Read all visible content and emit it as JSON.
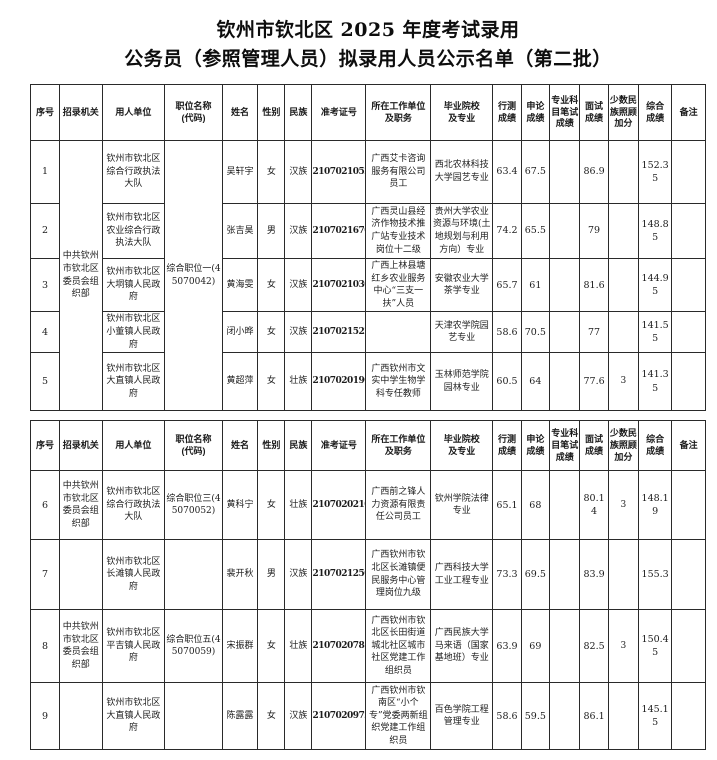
{
  "title": {
    "line1": "钦州市钦北区 2025 年度考试录用",
    "line2": "公务员（参照管理人员）拟录用人员公示名单（第二批）"
  },
  "colors": {
    "background": "#ffffff",
    "text": "#141414",
    "border": "#2a2a2a"
  },
  "columns": [
    "序号",
    "招录机关",
    "用人单位",
    "职位名称\n(代码)",
    "姓名",
    "性别",
    "民族",
    "准考证号",
    "所在工作单位\n及职务",
    "毕业院校\n及专业",
    "行测\n成绩",
    "申论\n成绩",
    "专业科\n目笔试\n成绩",
    "面试\n成绩",
    "少数民\n族照顾\n加分",
    "综合\n成绩",
    "备注"
  ],
  "tables": [
    {
      "merged": {
        "agency": "中共钦州市钦北区委员会组织部",
        "position": "综合职位一(45070042)"
      },
      "rows": [
        {
          "seq": "1",
          "employer": "钦州市钦北区综合行政执法大队",
          "name": "吴轩宇",
          "gender": "女",
          "ethnicity": "汉族",
          "ticket": "21070210520",
          "work_unit": "广西艾卡咨询服务有限公司员工",
          "school_major": "西北农林科技大学园艺专业",
          "xingce": "63.4",
          "shenlun": "67.5",
          "subject": "",
          "interview": "86.9",
          "bonus": "",
          "total": "152.35",
          "remark": ""
        },
        {
          "seq": "2",
          "employer": "钦州市钦北区农业综合行政执法大队",
          "name": "张吉昊",
          "gender": "男",
          "ethnicity": "汉族",
          "ticket": "21070216702",
          "work_unit": "广西灵山县经济作物技术推广站专业技术岗位十二级",
          "school_major": "贵州大学农业资源与环境(土地规划与利用方向）专业",
          "xingce": "74.2",
          "shenlun": "65.5",
          "subject": "",
          "interview": "79",
          "bonus": "",
          "total": "148.85",
          "remark": ""
        },
        {
          "seq": "3",
          "employer": "钦州市钦北区大垌镇人民政府",
          "name": "黄海雯",
          "gender": "女",
          "ethnicity": "汉族",
          "ticket": "21070210304",
          "work_unit": "广西上林县塘红乡农业服务中心“三支一扶”人员",
          "school_major": "安徽农业大学茶学专业",
          "xingce": "65.7",
          "shenlun": "61",
          "subject": "",
          "interview": "81.6",
          "bonus": "",
          "total": "144.95",
          "remark": ""
        },
        {
          "seq": "4",
          "employer": "钦州市钦北区小董镇人民政府",
          "name": "闭小晔",
          "gender": "女",
          "ethnicity": "汉族",
          "ticket": "21070215222",
          "work_unit": "",
          "school_major": "天津农学院园艺专业",
          "xingce": "58.6",
          "shenlun": "70.5",
          "subject": "",
          "interview": "77",
          "bonus": "",
          "total": "141.55",
          "remark": ""
        },
        {
          "seq": "5",
          "employer": "钦州市钦北区大直镇人民政府",
          "name": "黄超萍",
          "gender": "女",
          "ethnicity": "壮族",
          "ticket": "21070201906",
          "work_unit": "广西钦州市文实中学生物学科专任教师",
          "school_major": "玉林师范学院园林专业",
          "xingce": "60.5",
          "shenlun": "64",
          "subject": "",
          "interview": "77.6",
          "bonus": "3",
          "total": "141.35",
          "remark": ""
        }
      ]
    },
    {
      "rows": [
        {
          "seq": "6",
          "agency": "中共钦州市钦北区委员会组织部",
          "employer": "钦州市钦北区综合行政执法大队",
          "position": "综合职位三(45070052)",
          "name": "黄科宁",
          "gender": "女",
          "ethnicity": "壮族",
          "ticket": "21070202101",
          "work_unit": "广西前之锋人力资源有限责任公司员工",
          "school_major": "钦州学院法律专业",
          "xingce": "65.1",
          "shenlun": "68",
          "subject": "",
          "interview": "80.14",
          "bonus": "3",
          "total": "148.19",
          "remark": ""
        },
        {
          "seq": "7",
          "agency": "",
          "employer": "钦州市钦北区长滩镇人民政府",
          "position": "",
          "name": "裴开秋",
          "gender": "男",
          "ethnicity": "汉族",
          "ticket": "21070212507",
          "work_unit": "广西钦州市钦北区长滩镇便民服务中心管理岗位九级",
          "school_major": "广西科技大学工业工程专业",
          "xingce": "73.3",
          "shenlun": "69.5",
          "subject": "",
          "interview": "83.9",
          "bonus": "",
          "total": "155.3",
          "remark": ""
        },
        {
          "seq": "8",
          "agency": "中共钦州市钦北区委员会组织部",
          "employer": "钦州市钦北区平吉镇人民政府",
          "position": "综合职位五(45070059)",
          "name": "宋振群",
          "gender": "女",
          "ethnicity": "壮族",
          "ticket": "21070207814",
          "work_unit": "广西钦州市钦北区长田街道城北社区城市社区党建工作组织员",
          "school_major": "广西民族大学马来语（国家基地班）专业",
          "xingce": "63.9",
          "shenlun": "69",
          "subject": "",
          "interview": "82.5",
          "bonus": "3",
          "total": "150.45",
          "remark": ""
        },
        {
          "seq": "9",
          "agency": "",
          "employer": "钦州市钦北区大直镇人民政府",
          "position": "",
          "name": "陈露露",
          "gender": "女",
          "ethnicity": "汉族",
          "ticket": "21070209720",
          "work_unit": "广西钦州市钦南区“小个专”党委两新组织党建工作组织员",
          "school_major": "百色学院工程管理专业",
          "xingce": "58.6",
          "shenlun": "59.5",
          "subject": "",
          "interview": "86.1",
          "bonus": "",
          "total": "145.15",
          "remark": ""
        }
      ]
    }
  ]
}
